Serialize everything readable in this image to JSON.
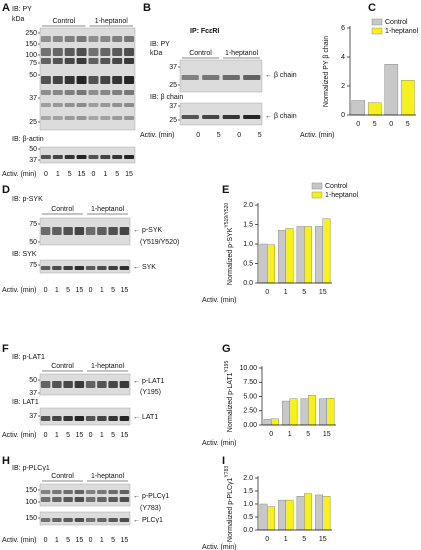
{
  "blots": [
    {
      "panel": "A",
      "kda_unit": "kDa",
      "groups": [
        "Control",
        "1-heptanol"
      ],
      "xlabel": "Activ. (min)",
      "times": [
        "0",
        "1",
        "5",
        "15",
        "0",
        "1",
        "5",
        "15"
      ],
      "sections": [
        {
          "ib": "IB: PY",
          "kda": [
            "250",
            "150",
            "100",
            "75",
            "50",
            "37",
            "25"
          ],
          "arrows": []
        },
        {
          "ib": "IB: β-actin",
          "kda": [
            "50",
            "37"
          ],
          "arrows": []
        }
      ]
    },
    {
      "panel": "B",
      "title": "IP: FcεRI",
      "kda_unit": "kDa",
      "groups": [
        "Control",
        "1-heptanol"
      ],
      "xlabel": "Activ. (min)",
      "times": [
        "0",
        "5",
        "0",
        "5"
      ],
      "sections": [
        {
          "ib": "IB: PY",
          "kda": [
            "37",
            "25"
          ],
          "arrows": [
            "← β chain"
          ]
        },
        {
          "ib": "IB: β chain",
          "kda": [
            "37",
            "25"
          ],
          "arrows": [
            "← β chain"
          ]
        }
      ]
    },
    {
      "panel": "D",
      "groups": [
        "Control",
        "1-heptanol"
      ],
      "xlabel": "Activ. (min)",
      "times": [
        "0",
        "1",
        "5",
        "15",
        "0",
        "1",
        "5",
        "15"
      ],
      "sections": [
        {
          "ib": "IB: p-SYK",
          "kda": [
            "75",
            "50"
          ],
          "arrows": [
            "← p-SYK",
            "(Y519/Y520)"
          ]
        },
        {
          "ib": "IB: SYK",
          "kda": [
            "75"
          ],
          "arrows": [
            "← SYK"
          ]
        }
      ]
    },
    {
      "panel": "F",
      "groups": [
        "Control",
        "1-heptanol"
      ],
      "xlabel": "Activ. (min)",
      "times": [
        "0",
        "1",
        "5",
        "15",
        "0",
        "1",
        "5",
        "15"
      ],
      "sections": [
        {
          "ib": "IB: p-LAT1",
          "kda": [
            "50",
            "37"
          ],
          "arrows": [
            "← p-LAT1",
            "(Y195)"
          ]
        },
        {
          "ib": "IB: LAT1",
          "kda": [
            "37"
          ],
          "arrows": [
            "← LAT1"
          ]
        }
      ]
    },
    {
      "panel": "H",
      "groups": [
        "Control",
        "1-heptanol"
      ],
      "xlabel": "Activ. (min)",
      "times": [
        "0",
        "1",
        "5",
        "15",
        "0",
        "1",
        "5",
        "15"
      ],
      "sections": [
        {
          "ib": "IB: p-PLCγ1",
          "kda": [
            "150",
            "100"
          ],
          "arrows": [
            "← p-PLCγ1",
            "(Y783)"
          ]
        },
        {
          "kda": [
            "150"
          ],
          "arrows": [
            "← PLCγ1"
          ]
        }
      ]
    }
  ],
  "chart_data": [
    {
      "type": "bar",
      "panel": "C",
      "ylabel": "Normalized PY β chain",
      "xlabel": "Activ. (min)",
      "categories": [
        "0",
        "5",
        "0",
        "5"
      ],
      "ylim": [
        0,
        6
      ],
      "yticks": [
        0,
        2,
        4,
        6
      ],
      "legend": "top-right",
      "series": [
        {
          "name": "Control",
          "color": "#c8c8c8",
          "values": [
            1.0,
            null,
            3.5,
            null
          ]
        },
        {
          "name": "1-heptanol",
          "color": "#f5f01e",
          "values": [
            null,
            0.85,
            null,
            2.4
          ]
        }
      ]
    },
    {
      "type": "bar",
      "panel": "E",
      "ylabel": "Normalized p-SYK",
      "ylabel_sup": "Y519/Y520",
      "xlabel": "Activ. (min)",
      "categories": [
        "0",
        "1",
        "5",
        "15"
      ],
      "ylim": [
        0,
        2
      ],
      "yticks": [
        {
          "value": 0,
          "label": "0.0"
        },
        {
          "value": 0.5,
          "label": "0.5"
        },
        {
          "value": 1,
          "label": "1.0"
        },
        {
          "value": 1.5,
          "label": "1.5"
        },
        {
          "value": 2,
          "label": "2.0"
        }
      ],
      "legend": "top-right",
      "series": [
        {
          "name": "Control",
          "color": "#c8c8c8",
          "values": [
            1.0,
            1.35,
            1.45,
            1.45
          ]
        },
        {
          "name": "1-heptanol",
          "color": "#f5f01e",
          "values": [
            0.98,
            1.4,
            1.45,
            1.65
          ]
        }
      ]
    },
    {
      "type": "bar",
      "panel": "G",
      "ylabel": "Normalized p-LAT1",
      "ylabel_sup": "Y195",
      "xlabel": "Activ. (min)",
      "categories": [
        "0",
        "1",
        "5",
        "15"
      ],
      "ylim": [
        0,
        10
      ],
      "yticks": [
        {
          "value": 0,
          "label": "0.00"
        },
        {
          "value": 2.5,
          "label": "2.50"
        },
        {
          "value": 5,
          "label": "5.00"
        },
        {
          "value": 7.5,
          "label": "7.50"
        },
        {
          "value": 10,
          "label": "10.00"
        }
      ],
      "series": [
        {
          "color": "#c8c8c8",
          "values": [
            1.0,
            4.2,
            4.6,
            4.6
          ]
        },
        {
          "color": "#f5f01e",
          "values": [
            1.1,
            4.6,
            5.2,
            4.7
          ]
        }
      ]
    },
    {
      "type": "bar",
      "panel": "I",
      "ylabel": "Normalized p-PLCγ1",
      "ylabel_sup": "Y783",
      "xlabel": "Activ. (min)",
      "categories": [
        "0",
        "1",
        "5",
        "15"
      ],
      "ylim": [
        0,
        2
      ],
      "yticks": [
        {
          "value": 0,
          "label": "0.0"
        },
        {
          "value": 0.5,
          "label": "0.5"
        },
        {
          "value": 1,
          "label": "1.0"
        },
        {
          "value": 1.5,
          "label": "1.5"
        },
        {
          "value": 2,
          "label": "2.0"
        }
      ],
      "series": [
        {
          "color": "#c8c8c8",
          "values": [
            1.0,
            1.15,
            1.3,
            1.35
          ]
        },
        {
          "color": "#f5f01e",
          "values": [
            0.9,
            1.15,
            1.4,
            1.3
          ]
        }
      ]
    }
  ]
}
